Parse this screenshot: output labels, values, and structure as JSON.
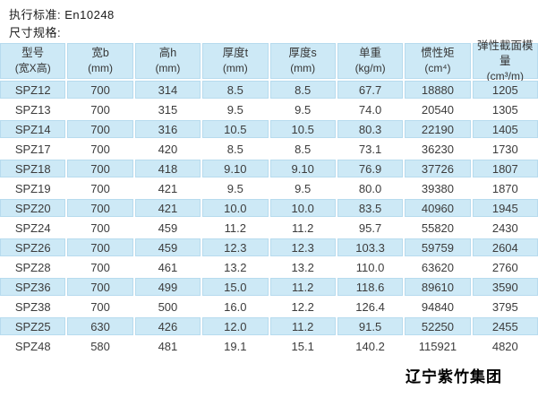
{
  "notes": {
    "standard_label": "执行标准: En10248",
    "spec_label": "尺寸规格:"
  },
  "table": {
    "columns": [
      {
        "label": "型号",
        "unit": "(宽X高)"
      },
      {
        "label": "宽b",
        "unit": "(mm)"
      },
      {
        "label": "高h",
        "unit": "(mm)"
      },
      {
        "label": "厚度t",
        "unit": "(mm)"
      },
      {
        "label": "厚度s",
        "unit": "(mm)"
      },
      {
        "label": "单重",
        "unit": "(kg/m)"
      },
      {
        "label": "惯性矩",
        "unit": "(cm⁴)"
      },
      {
        "label": "弹性截面模量",
        "unit": "(cm³/m)"
      }
    ],
    "rows": [
      [
        "SPZ12",
        "700",
        "314",
        "8.5",
        "8.5",
        "67.7",
        "18880",
        "1205"
      ],
      [
        "SPZ13",
        "700",
        "315",
        "9.5",
        "9.5",
        "74.0",
        "20540",
        "1305"
      ],
      [
        "SPZ14",
        "700",
        "316",
        "10.5",
        "10.5",
        "80.3",
        "22190",
        "1405"
      ],
      [
        "SPZ17",
        "700",
        "420",
        "8.5",
        "8.5",
        "73.1",
        "36230",
        "1730"
      ],
      [
        "SPZ18",
        "700",
        "418",
        "9.10",
        "9.10",
        "76.9",
        "37726",
        "1807"
      ],
      [
        "SPZ19",
        "700",
        "421",
        "9.5",
        "9.5",
        "80.0",
        "39380",
        "1870"
      ],
      [
        "SPZ20",
        "700",
        "421",
        "10.0",
        "10.0",
        "83.5",
        "40960",
        "1945"
      ],
      [
        "SPZ24",
        "700",
        "459",
        "11.2",
        "11.2",
        "95.7",
        "55820",
        "2430"
      ],
      [
        "SPZ26",
        "700",
        "459",
        "12.3",
        "12.3",
        "103.3",
        "59759",
        "2604"
      ],
      [
        "SPZ28",
        "700",
        "461",
        "13.2",
        "13.2",
        "110.0",
        "63620",
        "2760"
      ],
      [
        "SPZ36",
        "700",
        "499",
        "15.0",
        "11.2",
        "118.6",
        "89610",
        "3590"
      ],
      [
        "SPZ38",
        "700",
        "500",
        "16.0",
        "12.2",
        "126.4",
        "94840",
        "3795"
      ],
      [
        "SPZ25",
        "630",
        "426",
        "12.0",
        "11.2",
        "91.5",
        "52250",
        "2455"
      ],
      [
        "SPZ48",
        "580",
        "481",
        "19.1",
        "15.1",
        "140.2",
        "115921",
        "4820"
      ]
    ]
  },
  "footer": {
    "company_name": "辽宁紫竹集团"
  },
  "colors": {
    "row_highlight": "#cde9f6",
    "cell_border": "#b7dbee",
    "text": "#3c3c3c"
  }
}
